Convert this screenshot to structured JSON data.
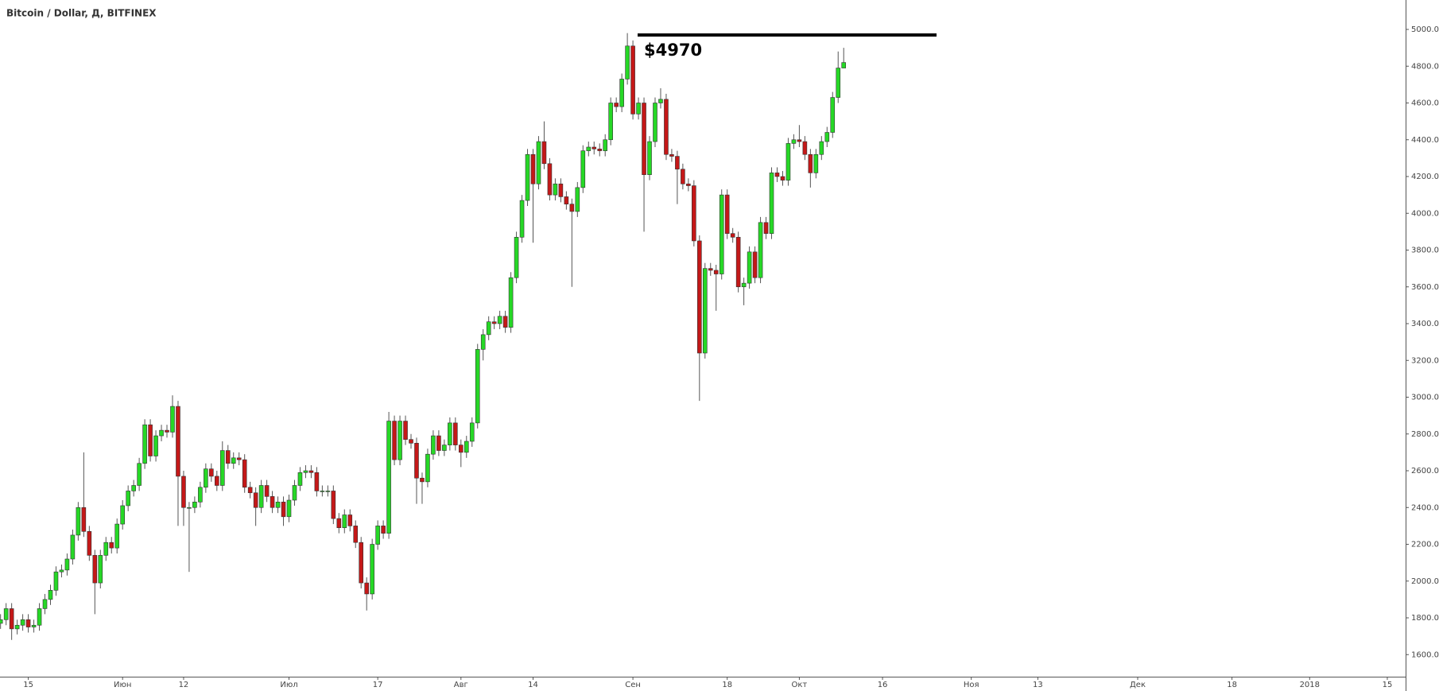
{
  "chart_data": {
    "type": "candlestick",
    "title": "Bitcoin / Dollar, Д, BITFINEX",
    "up_color": "#26d826",
    "down_color": "#c41818",
    "x": [
      0,
      1,
      2,
      3,
      4,
      5,
      6,
      7,
      8,
      9,
      10,
      11,
      12,
      13,
      14,
      15,
      16,
      17,
      18,
      19,
      20,
      21,
      22,
      23,
      24,
      25,
      26,
      27,
      28,
      29,
      30,
      31,
      32,
      33,
      34,
      35,
      36,
      37,
      38,
      39,
      40,
      41,
      42,
      43,
      44,
      45,
      46,
      47,
      48,
      49,
      50,
      51,
      52,
      53,
      54,
      55,
      56,
      57,
      58,
      59,
      60,
      61,
      62,
      63,
      64,
      65,
      66,
      67,
      68,
      69,
      70,
      71,
      72,
      73,
      74,
      75,
      76,
      77,
      78,
      79,
      80,
      81,
      82,
      83,
      84,
      85,
      86,
      87,
      88,
      89,
      90,
      91,
      92,
      93,
      94,
      95,
      96,
      97,
      98,
      99,
      100,
      101,
      102,
      103,
      104,
      105,
      106,
      107,
      108,
      109,
      110,
      111,
      112,
      113,
      114,
      115,
      116,
      117,
      118,
      119,
      120,
      121,
      122,
      123,
      124,
      125,
      126,
      127,
      128,
      129,
      130,
      131,
      132,
      133,
      134,
      135,
      136,
      137,
      138,
      139,
      140,
      141,
      142,
      143,
      144,
      145,
      146,
      147,
      148,
      149,
      150,
      151,
      152
    ],
    "open": [
      1770,
      1790,
      1850,
      1740,
      1760,
      1790,
      1750,
      1760,
      1850,
      1900,
      1950,
      2050,
      2060,
      2120,
      2250,
      2400,
      2270,
      2140,
      1990,
      2140,
      2210,
      2180,
      2310,
      2410,
      2490,
      2520,
      2640,
      2850,
      2680,
      2790,
      2820,
      2810,
      2950,
      2570,
      2400,
      2400,
      2430,
      2510,
      2610,
      2570,
      2520,
      2710,
      2640,
      2670,
      2660,
      2510,
      2480,
      2400,
      2520,
      2460,
      2400,
      2430,
      2350,
      2440,
      2520,
      2590,
      2600,
      2590,
      2490,
      2490,
      2490,
      2340,
      2290,
      2360,
      2300,
      2210,
      1990,
      1930,
      2200,
      2300,
      2260,
      2870,
      2660,
      2870,
      2770,
      2750,
      2560,
      2540,
      2690,
      2790,
      2710,
      2740,
      2860,
      2740,
      2700,
      2760,
      2860,
      3260,
      3340,
      3410,
      3400,
      3440,
      3380,
      3650,
      3870,
      4070,
      4320,
      4160,
      4390,
      4270,
      4100,
      4160,
      4090,
      4050,
      4010,
      4140,
      4340,
      4360,
      4350,
      4340,
      4400,
      4600,
      4580,
      4730,
      4910,
      4540,
      4600,
      4210,
      4390,
      4600,
      4620,
      4320,
      4310,
      4240,
      4160,
      4150,
      3850,
      3240,
      3700,
      3690,
      3670,
      4100,
      3890,
      3870,
      3600,
      3620,
      3790,
      3650,
      3950,
      3890,
      4220,
      4200,
      4180,
      4380,
      4400,
      4390,
      4320,
      4220,
      4320,
      4390,
      4440,
      4630,
      4790
    ],
    "high": [
      1820,
      1880,
      1880,
      1790,
      1820,
      1820,
      1790,
      1880,
      1930,
      1980,
      2080,
      2090,
      2150,
      2280,
      2430,
      2700,
      2300,
      2170,
      2170,
      2240,
      2240,
      2340,
      2440,
      2520,
      2550,
      2670,
      2880,
      2880,
      2820,
      2850,
      2850,
      3010,
      2980,
      2600,
      2430,
      2460,
      2540,
      2640,
      2640,
      2600,
      2760,
      2740,
      2700,
      2700,
      2690,
      2540,
      2510,
      2550,
      2550,
      2490,
      2460,
      2460,
      2470,
      2550,
      2620,
      2630,
      2630,
      2620,
      2520,
      2520,
      2520,
      2370,
      2390,
      2390,
      2330,
      2240,
      2020,
      2230,
      2330,
      2330,
      2920,
      2900,
      2900,
      2900,
      2800,
      2780,
      2590,
      2720,
      2820,
      2820,
      2770,
      2890,
      2890,
      2770,
      2790,
      2890,
      3290,
      3370,
      3440,
      3440,
      3470,
      3470,
      3680,
      3900,
      4100,
      4350,
      4350,
      4420,
      4500,
      4300,
      4190,
      4190,
      4120,
      4080,
      4170,
      4370,
      4390,
      4390,
      4380,
      4430,
      4630,
      4630,
      4760,
      4980,
      4940,
      4630,
      4630,
      4420,
      4630,
      4680,
      4650,
      4350,
      4340,
      4270,
      4190,
      4180,
      3880,
      3730,
      3730,
      3720,
      4130,
      4130,
      3920,
      3900,
      3650,
      3820,
      3820,
      3980,
      3980,
      4250,
      4250,
      4230,
      4410,
      4430,
      4480,
      4420,
      4350,
      4350,
      4420,
      4470,
      4660,
      4880,
      4900
    ],
    "low": [
      1740,
      1760,
      1680,
      1710,
      1730,
      1720,
      1720,
      1730,
      1820,
      1870,
      1920,
      2020,
      2030,
      2090,
      2220,
      2240,
      2110,
      1820,
      1960,
      2110,
      2150,
      2150,
      2280,
      2380,
      2460,
      2490,
      2610,
      2650,
      2650,
      2760,
      2780,
      2780,
      2300,
      2300,
      2050,
      2370,
      2400,
      2480,
      2540,
      2490,
      2490,
      2610,
      2610,
      2630,
      2480,
      2450,
      2300,
      2370,
      2430,
      2370,
      2370,
      2300,
      2320,
      2410,
      2490,
      2560,
      2560,
      2460,
      2460,
      2460,
      2310,
      2260,
      2260,
      2270,
      2180,
      1960,
      1840,
      1900,
      2170,
      2230,
      2230,
      2630,
      2630,
      2740,
      2720,
      2420,
      2420,
      2510,
      2660,
      2680,
      2680,
      2710,
      2710,
      2620,
      2670,
      2730,
      2830,
      3200,
      3310,
      3370,
      3370,
      3350,
      3350,
      3620,
      3840,
      4040,
      3840,
      4130,
      4240,
      4070,
      4070,
      4060,
      4020,
      3600,
      3980,
      4110,
      4310,
      4320,
      4310,
      4310,
      4370,
      4550,
      4550,
      4700,
      4510,
      4510,
      3900,
      4180,
      4360,
      4570,
      4290,
      4280,
      4050,
      4130,
      4120,
      3820,
      2980,
      3210,
      3660,
      3470,
      3640,
      3860,
      3840,
      3570,
      3500,
      3590,
      3620,
      3620,
      3860,
      3860,
      4170,
      4150,
      4150,
      4350,
      4360,
      4290,
      4140,
      4190,
      4290,
      4360,
      4410,
      4600,
      4790
    ],
    "close": [
      1790,
      1850,
      1740,
      1760,
      1790,
      1750,
      1760,
      1850,
      1900,
      1950,
      2050,
      2060,
      2120,
      2250,
      2400,
      2270,
      2140,
      1990,
      2140,
      2210,
      2180,
      2310,
      2410,
      2490,
      2520,
      2640,
      2850,
      2680,
      2790,
      2820,
      2810,
      2950,
      2570,
      2400,
      2400,
      2430,
      2510,
      2610,
      2570,
      2520,
      2710,
      2640,
      2670,
      2660,
      2510,
      2480,
      2400,
      2520,
      2460,
      2400,
      2430,
      2350,
      2440,
      2520,
      2590,
      2600,
      2590,
      2490,
      2490,
      2490,
      2340,
      2290,
      2360,
      2300,
      2210,
      1990,
      1930,
      2200,
      2300,
      2260,
      2870,
      2660,
      2870,
      2770,
      2750,
      2560,
      2540,
      2690,
      2790,
      2710,
      2740,
      2860,
      2740,
      2700,
      2760,
      2860,
      3260,
      3340,
      3410,
      3400,
      3440,
      3380,
      3650,
      3870,
      4070,
      4320,
      4160,
      4390,
      4270,
      4100,
      4160,
      4090,
      4050,
      4010,
      4140,
      4340,
      4360,
      4350,
      4340,
      4400,
      4600,
      4580,
      4730,
      4910,
      4540,
      4600,
      4210,
      4390,
      4600,
      4620,
      4320,
      4310,
      4240,
      4160,
      4150,
      3850,
      3240,
      3700,
      3690,
      3670,
      4100,
      3890,
      3870,
      3600,
      3620,
      3790,
      3650,
      3950,
      3890,
      4220,
      4200,
      4180,
      4380,
      4400,
      4390,
      4320,
      4220,
      4320,
      4390,
      4440,
      4630,
      4790,
      4820
    ],
    "xlim": [
      -0.1,
      253.3
    ],
    "xticks": [
      {
        "value": 5,
        "label": "15"
      },
      {
        "value": 22,
        "label": "Июн"
      },
      {
        "value": 33,
        "label": "12"
      },
      {
        "value": 52,
        "label": "Июл"
      },
      {
        "value": 68,
        "label": "17"
      },
      {
        "value": 83,
        "label": "Авг"
      },
      {
        "value": 96,
        "label": "14"
      },
      {
        "value": 114,
        "label": "Сен"
      },
      {
        "value": 131,
        "label": "18"
      },
      {
        "value": 144,
        "label": "Окт"
      },
      {
        "value": 159,
        "label": "16"
      },
      {
        "value": 175,
        "label": "Ноя"
      },
      {
        "value": 187,
        "label": "13"
      },
      {
        "value": 205,
        "label": "Дек"
      },
      {
        "value": 222,
        "label": "18"
      },
      {
        "value": 236,
        "label": "2018"
      },
      {
        "value": 250,
        "label": "15"
      }
    ],
    "ylim": [
      1480,
      5160
    ],
    "yticks": [
      {
        "value": 1600,
        "label": "1600.0"
      },
      {
        "value": 1800,
        "label": "1800.0"
      },
      {
        "value": 2000,
        "label": "2000.0"
      },
      {
        "value": 2200,
        "label": "2200.0"
      },
      {
        "value": 2400,
        "label": "2400.0"
      },
      {
        "value": 2600,
        "label": "2600.0"
      },
      {
        "value": 2800,
        "label": "2800.0"
      },
      {
        "value": 3000,
        "label": "3000.0"
      },
      {
        "value": 3200,
        "label": "3200.0"
      },
      {
        "value": 3400,
        "label": "3400.0"
      },
      {
        "value": 3600,
        "label": "3600.0"
      },
      {
        "value": 3800,
        "label": "3800.0"
      },
      {
        "value": 4000,
        "label": "4000.0"
      },
      {
        "value": 4200,
        "label": "4200.0"
      },
      {
        "value": 4400,
        "label": "4400.0"
      },
      {
        "value": 4600,
        "label": "4600.0"
      },
      {
        "value": 4800,
        "label": "4800.0"
      },
      {
        "value": 5000,
        "label": "5000.0"
      }
    ],
    "annotation": {
      "label": "$4970",
      "value": 4970
    }
  }
}
